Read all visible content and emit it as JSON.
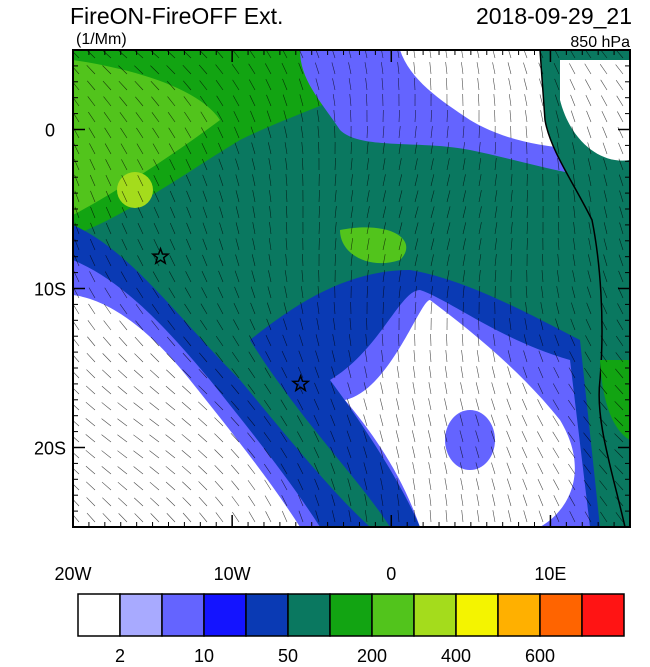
{
  "header": {
    "title": "FireON-FireOFF Ext.",
    "units": "(1/Mm)",
    "time": "2018-09-29_21",
    "level": "850 hPa"
  },
  "map": {
    "lon_range": [
      -20,
      15
    ],
    "lat_range": [
      -25,
      5
    ],
    "lon_ticks": [
      {
        "value": -20,
        "label": "20W"
      },
      {
        "value": -10,
        "label": "10W"
      },
      0,
      {
        "value": 10,
        "label": "10E"
      }
    ],
    "lat_ticks": [
      0,
      {
        "value": -10,
        "label": "10S"
      },
      {
        "value": -20,
        "label": "20S"
      }
    ],
    "markers": [
      {
        "lon": -14.5,
        "lat": -8
      },
      {
        "lon": -5.7,
        "lat": -16
      }
    ]
  },
  "colorbar": {
    "colors": [
      "#ffffff",
      "#a8aaff",
      "#6464ff",
      "#1414ff",
      "#0a3ab4",
      "#0a7860",
      "#12a412",
      "#52c41c",
      "#a4dc1c",
      "#f4f400",
      "#ffb000",
      "#ff6400",
      "#ff1414"
    ],
    "labels": [
      2,
      10,
      50,
      200,
      400,
      600
    ]
  }
}
